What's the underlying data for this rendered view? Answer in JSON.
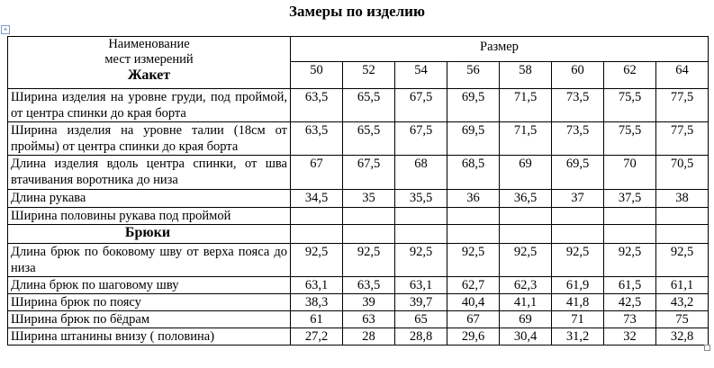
{
  "title": "Замеры по изделию",
  "header": {
    "name_col_line1": "Наименование",
    "name_col_line2": "мест измерений",
    "section_jacket": "Жакет",
    "size_label": "Размер",
    "sizes": [
      "50",
      "52",
      "54",
      "56",
      "58",
      "60",
      "62",
      "64"
    ]
  },
  "jacket_rows": [
    {
      "name": "Ширина изделия на уровне груди, под проймой, от центра спинки до края борта",
      "values": [
        "63,5",
        "65,5",
        "67,5",
        "69,5",
        "71,5",
        "73,5",
        "75,5",
        "77,5"
      ]
    },
    {
      "name": "Ширина изделия на уровне талии (18см от проймы) от центра спинки до края борта",
      "values": [
        "63,5",
        "65,5",
        "67,5",
        "69,5",
        "71,5",
        "73,5",
        "75,5",
        "77,5"
      ]
    },
    {
      "name": "Длина изделия вдоль центра спинки, от шва втачивания воротника до низа",
      "values": [
        "67",
        "67,5",
        "68",
        "68,5",
        "69",
        "69,5",
        "70",
        "70,5"
      ]
    },
    {
      "name": "Длина рукава",
      "values": [
        "34,5",
        "35",
        "35,5",
        "36",
        "36,5",
        "37",
        "37,5",
        "38"
      ]
    },
    {
      "name": "Ширина половины рукава под проймой",
      "values": [
        "",
        "",
        "",
        "",
        "",
        "",
        "",
        ""
      ]
    }
  ],
  "section_trousers": "Брюки",
  "trouser_rows": [
    {
      "name": "Длина брюк по боковому шву от верха пояса до низа",
      "values": [
        "92,5",
        "92,5",
        "92,5",
        "92,5",
        "92,5",
        "92,5",
        "92,5",
        "92,5"
      ]
    },
    {
      "name": "Длина брюк по шаговому шву",
      "values": [
        "63,1",
        "63,5",
        "63,1",
        "62,7",
        "62,3",
        "61,9",
        "61,5",
        "61,1"
      ]
    },
    {
      "name": "Ширина брюк по поясу",
      "values": [
        "38,3",
        "39",
        "39,7",
        "40,4",
        "41,1",
        "41,8",
        "42,5",
        "43,2"
      ]
    },
    {
      "name": "Ширина брюк по бёдрам",
      "values": [
        "61",
        "63",
        "65",
        "67",
        "69",
        "71",
        "73",
        "75"
      ]
    },
    {
      "name": "Ширина штанины внизу ( половина)",
      "values": [
        "27,2",
        "28",
        "28,8",
        "29,6",
        "30,4",
        "31,2",
        "32",
        "32,8"
      ]
    }
  ]
}
